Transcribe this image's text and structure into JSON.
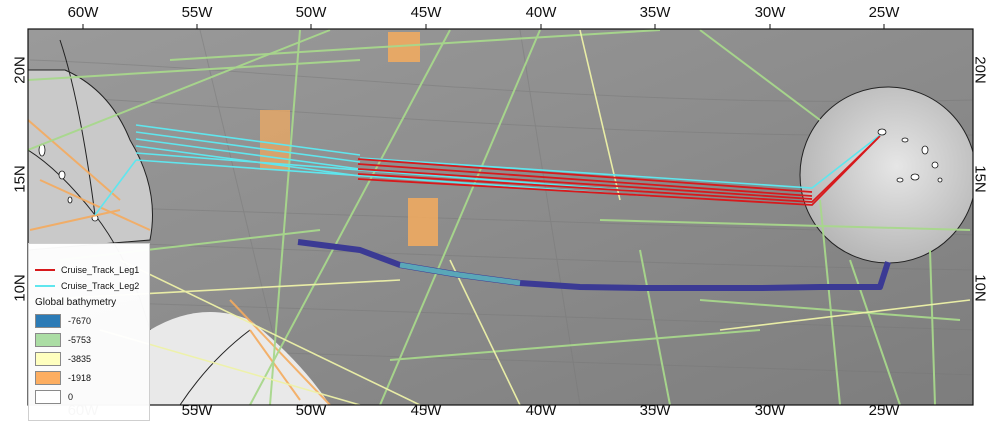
{
  "map": {
    "lon_ticks": [
      "60W",
      "55W",
      "50W",
      "45W",
      "40W",
      "35W",
      "30W",
      "25W"
    ],
    "lat_ticks": [
      "20N",
      "15N",
      "10N"
    ],
    "colors": {
      "leg1": "#d7191c",
      "leg2": "#5fe6ee",
      "track_green": "#a8d88c",
      "track_yellow": "#eef2a8",
      "track_orange": "#f5ab5e",
      "deep_track": "#3b3a94"
    }
  },
  "legend": {
    "lines": [
      {
        "label": "Cruise_Track_Leg1",
        "color": "#d7191c"
      },
      {
        "label": "Cruise_Track_Leg2",
        "color": "#5fe6ee"
      }
    ],
    "title": "Global bathymetry",
    "classes": [
      {
        "label": "-7670",
        "color": "#2c7bb6"
      },
      {
        "label": "-5753",
        "color": "#abdda4"
      },
      {
        "label": "-3835",
        "color": "#ffffbf"
      },
      {
        "label": "-1918",
        "color": "#fdae61"
      },
      {
        "label": "0",
        "color": "#ffffff"
      }
    ]
  }
}
